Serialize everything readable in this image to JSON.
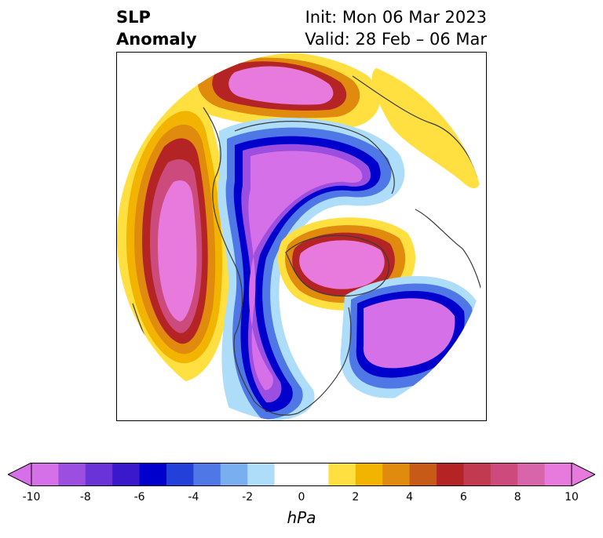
{
  "title": {
    "left_line1": "SLP",
    "left_line2": "Anomaly",
    "init": "Init: Mon 06 Mar 2023",
    "valid": "Valid: 28 Feb – 06 Mar"
  },
  "colorbar": {
    "units": "hPa",
    "levels": [
      -10,
      -9,
      -8,
      -7,
      -6,
      -5,
      -4,
      -3,
      -2,
      -1,
      1,
      2,
      3,
      4,
      5,
      6,
      7,
      8,
      9,
      10
    ],
    "tick_labels": [
      "-10",
      "-8",
      "-6",
      "-4",
      "-2",
      "0",
      "2",
      "4",
      "6",
      "8",
      "10"
    ],
    "tick_values": [
      -10,
      -8,
      -6,
      -4,
      -2,
      0,
      2,
      4,
      6,
      8,
      10
    ],
    "extend": "both",
    "colors": [
      "#d670e8",
      "#9b4ee0",
      "#6a33d8",
      "#3a18cc",
      "#0000cc",
      "#2340d8",
      "#4f78e6",
      "#79aef0",
      "#aeddfa",
      "#ffffff",
      "#ffe040",
      "#f2b400",
      "#e08a0e",
      "#c85a18",
      "#b42424",
      "#c23a50",
      "#cd4a7c",
      "#d864aa",
      "#e77adc"
    ],
    "under_color": "#d670e8",
    "over_color": "#e77adc"
  },
  "map": {
    "projection": "north-polar-stereographic",
    "field": "SLP anomaly",
    "features": [
      "coastlines",
      "country-borders",
      "us-state-borders"
    ]
  }
}
